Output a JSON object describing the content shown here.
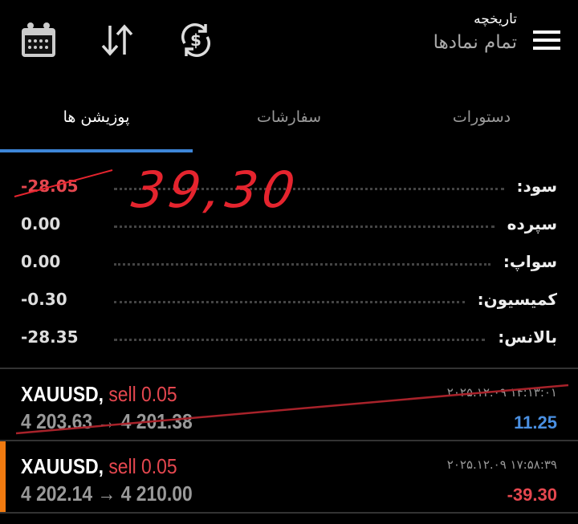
{
  "header": {
    "title": "تاریخچه",
    "subtitle": "تمام نمادها",
    "icons": [
      "menu-icon",
      "currency-exchange-icon",
      "sort-icon",
      "calendar-icon"
    ]
  },
  "tabs": [
    {
      "label": "دستورات"
    },
    {
      "label": "سفارشات"
    },
    {
      "label": "پوزیشن ها",
      "active": true
    }
  ],
  "summary": [
    {
      "label": "سود:",
      "value": "-28.05",
      "negative": true
    },
    {
      "label": "سپرده",
      "value": "0.00"
    },
    {
      "label": "سواپ:",
      "value": "0.00"
    },
    {
      "label": "کمیسیون:",
      "value": "-0.30"
    },
    {
      "label": "بالانس:",
      "value": "-28.35"
    }
  ],
  "annotation": "39,30",
  "positions": [
    {
      "symbol": "XAUUSD,",
      "side": "sell 0.05",
      "prices": "4 203.63 → 4 201.38",
      "time": "۲۰۲۵.۱۲.۰۹ ۱۴:۱۳:۰۱",
      "profit": "11.25",
      "profit_color": "#4a90e2"
    },
    {
      "symbol": "XAUUSD,",
      "side": "sell 0.05",
      "prices": "4 202.14 → 4 210.00",
      "time": "۲۰۲۵.۱۲.۰۹ ۱۷:۵۸:۳۹",
      "profit": "-39.30",
      "profit_color": "#e5474f"
    }
  ],
  "colors": {
    "accent": "#3d86d8",
    "loss": "#e5474f",
    "profit": "#4a90e2",
    "selected": "#f07a10",
    "annotation": "#e5242e"
  }
}
